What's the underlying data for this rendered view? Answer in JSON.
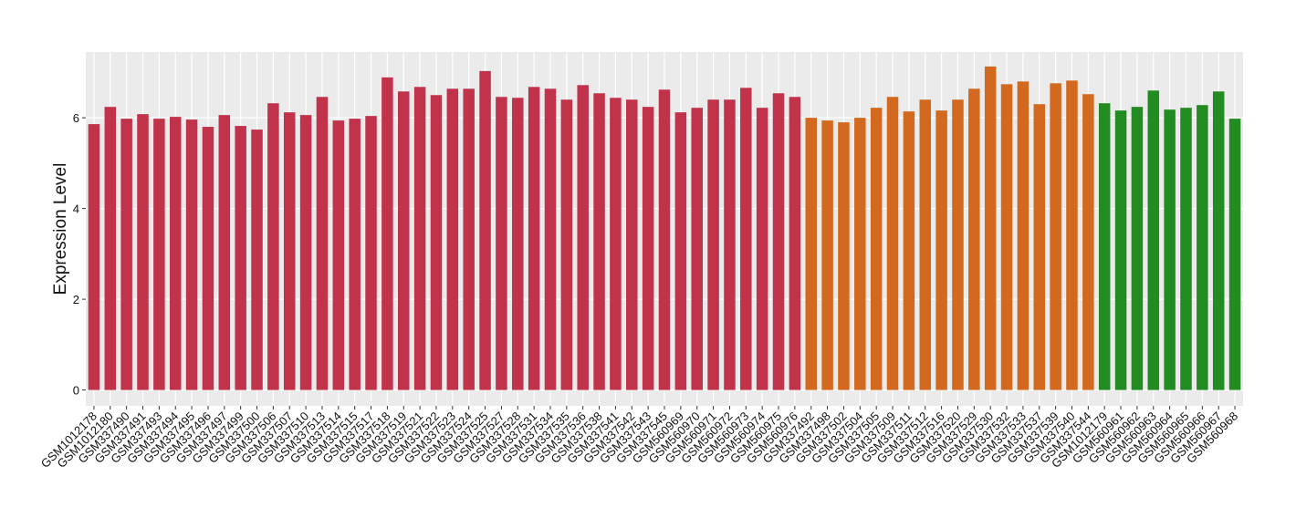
{
  "chart_data": {
    "type": "bar",
    "y_label": "Expression Level",
    "categories": [
      "GSM1012178",
      "GSM1012180",
      "GSM337490",
      "GSM337491",
      "GSM337493",
      "GSM337494",
      "GSM337495",
      "GSM337496",
      "GSM337497",
      "GSM337499",
      "GSM337500",
      "GSM337506",
      "GSM337507",
      "GSM337510",
      "GSM337513",
      "GSM337514",
      "GSM337515",
      "GSM337517",
      "GSM337518",
      "GSM337519",
      "GSM337521",
      "GSM337522",
      "GSM337523",
      "GSM337524",
      "GSM337525",
      "GSM337527",
      "GSM337528",
      "GSM337531",
      "GSM337534",
      "GSM337535",
      "GSM337536",
      "GSM337538",
      "GSM337541",
      "GSM337542",
      "GSM337543",
      "GSM337545",
      "GSM560969",
      "GSM560970",
      "GSM560971",
      "GSM560972",
      "GSM560973",
      "GSM560974",
      "GSM560975",
      "GSM560976",
      "GSM337492",
      "GSM337498",
      "GSM337502",
      "GSM337504",
      "GSM337505",
      "GSM337509",
      "GSM337511",
      "GSM337512",
      "GSM337516",
      "GSM337520",
      "GSM337529",
      "GSM337530",
      "GSM337532",
      "GSM337533",
      "GSM337537",
      "GSM337539",
      "GSM337540",
      "GSM337544",
      "GSM1012179",
      "GSM560961",
      "GSM560962",
      "GSM560963",
      "GSM560964",
      "GSM560965",
      "GSM560966",
      "GSM560967",
      "GSM560968"
    ],
    "values": [
      5.86,
      6.24,
      5.98,
      6.08,
      5.98,
      6.02,
      5.96,
      5.8,
      6.06,
      5.82,
      5.74,
      6.32,
      6.12,
      6.06,
      6.46,
      5.94,
      5.98,
      6.04,
      6.89,
      6.58,
      6.68,
      6.5,
      6.64,
      6.64,
      7.03,
      6.46,
      6.44,
      6.68,
      6.64,
      6.4,
      6.72,
      6.54,
      6.44,
      6.4,
      6.24,
      6.62,
      6.12,
      6.22,
      6.4,
      6.4,
      6.66,
      6.22,
      6.54,
      6.46,
      6.0,
      5.94,
      5.9,
      6.0,
      6.22,
      6.46,
      6.14,
      6.4,
      6.16,
      6.4,
      6.64,
      7.13,
      6.74,
      6.8,
      6.3,
      6.76,
      6.82,
      6.52,
      6.32,
      6.16,
      6.24,
      6.6,
      6.18,
      6.22,
      6.28,
      6.58,
      5.98
    ],
    "colors": [
      "#c1334a",
      "#c1334a",
      "#c1334a",
      "#c1334a",
      "#c1334a",
      "#c1334a",
      "#c1334a",
      "#c1334a",
      "#c1334a",
      "#c1334a",
      "#c1334a",
      "#c1334a",
      "#c1334a",
      "#c1334a",
      "#c1334a",
      "#c1334a",
      "#c1334a",
      "#c1334a",
      "#c1334a",
      "#c1334a",
      "#c1334a",
      "#c1334a",
      "#c1334a",
      "#c1334a",
      "#c1334a",
      "#c1334a",
      "#c1334a",
      "#c1334a",
      "#c1334a",
      "#c1334a",
      "#c1334a",
      "#c1334a",
      "#c1334a",
      "#c1334a",
      "#c1334a",
      "#c1334a",
      "#c1334a",
      "#c1334a",
      "#c1334a",
      "#c1334a",
      "#c1334a",
      "#c1334a",
      "#c1334a",
      "#c1334a",
      "#d2691e",
      "#d2691e",
      "#d2691e",
      "#d2691e",
      "#d2691e",
      "#d2691e",
      "#d2691e",
      "#d2691e",
      "#d2691e",
      "#d2691e",
      "#d2691e",
      "#d2691e",
      "#d2691e",
      "#d2691e",
      "#d2691e",
      "#d2691e",
      "#d2691e",
      "#d2691e",
      "#228b22",
      "#228b22",
      "#228b22",
      "#228b22",
      "#228b22",
      "#228b22",
      "#228b22",
      "#228b22",
      "#228b22"
    ],
    "ylim": [
      -0.35,
      7.45
    ],
    "yticks": [
      0,
      2,
      4,
      6
    ],
    "grid": true
  }
}
